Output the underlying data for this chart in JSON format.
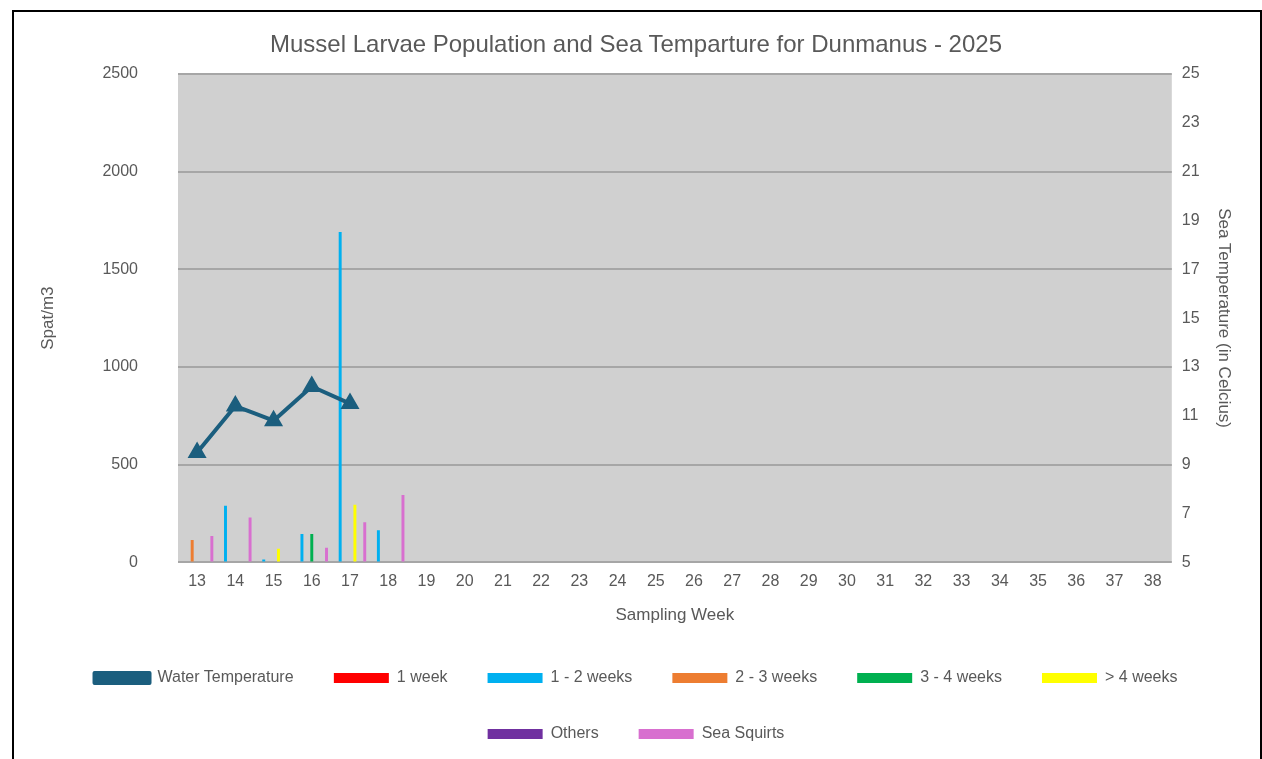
{
  "chart_data": {
    "type": "bar",
    "title": "Mussel Larvae Population and Sea Temparture for Dunmanus - 2025",
    "xlabel": "Sampling Week",
    "ylabel": "Spat/m3",
    "y2label": "Sea Temperature (in Celcius)",
    "categories": [
      "13",
      "14",
      "15",
      "16",
      "17",
      "18",
      "19",
      "20",
      "21",
      "22",
      "23",
      "24",
      "25",
      "26",
      "27",
      "28",
      "29",
      "30",
      "31",
      "32",
      "33",
      "34",
      "35",
      "36",
      "37",
      "38"
    ],
    "series": [
      {
        "name": "1 week",
        "color": "#ff0000",
        "values": [
          null,
          null,
          null,
          null,
          null,
          null,
          null,
          null,
          null,
          null,
          null,
          null,
          null,
          null,
          null,
          null,
          null,
          null,
          null,
          null,
          null,
          null,
          null,
          null,
          null,
          null
        ]
      },
      {
        "name": "1 - 2 weeks",
        "color": "#00b0f0",
        "values": [
          null,
          290,
          15,
          145,
          1690,
          165,
          null,
          null,
          null,
          null,
          null,
          null,
          null,
          null,
          null,
          null,
          null,
          null,
          null,
          null,
          null,
          null,
          null,
          null,
          null,
          null
        ]
      },
      {
        "name": "2 - 3 weeks",
        "color": "#ed7d31",
        "values": [
          115,
          null,
          null,
          null,
          null,
          null,
          null,
          null,
          null,
          null,
          null,
          null,
          null,
          null,
          null,
          null,
          null,
          null,
          null,
          null,
          null,
          null,
          null,
          null,
          null,
          null
        ]
      },
      {
        "name": "3 - 4 weeks",
        "color": "#00b050",
        "values": [
          null,
          null,
          null,
          145,
          null,
          null,
          null,
          null,
          null,
          null,
          null,
          null,
          null,
          null,
          null,
          null,
          null,
          null,
          null,
          null,
          null,
          null,
          null,
          null,
          null,
          null
        ]
      },
      {
        "name": "> 4 weeks",
        "color": "#ffff00",
        "values": [
          null,
          null,
          70,
          null,
          295,
          null,
          null,
          null,
          null,
          null,
          null,
          null,
          null,
          null,
          null,
          null,
          null,
          null,
          null,
          null,
          null,
          null,
          null,
          null,
          null,
          null
        ]
      },
      {
        "name": "Others",
        "color": "#7030a0",
        "values": [
          null,
          null,
          null,
          null,
          null,
          null,
          null,
          null,
          null,
          null,
          null,
          null,
          null,
          null,
          null,
          null,
          null,
          null,
          null,
          null,
          null,
          null,
          null,
          null,
          null,
          null
        ]
      },
      {
        "name": "Sea Squirts",
        "color": "#d86fcf",
        "values": [
          135,
          230,
          null,
          75,
          205,
          345,
          null,
          null,
          null,
          null,
          null,
          null,
          null,
          null,
          null,
          null,
          null,
          null,
          null,
          null,
          null,
          null,
          null,
          null,
          null,
          null
        ]
      },
      {
        "name": "Water Temperature",
        "type": "line",
        "axis": "y2",
        "color": "#1b5e7e",
        "marker": "triangle",
        "values": [
          9.5,
          11.4,
          10.8,
          12.2,
          11.5,
          null,
          null,
          null,
          null,
          null,
          null,
          null,
          null,
          null,
          null,
          null,
          null,
          null,
          null,
          null,
          null,
          null,
          null,
          null,
          null,
          null
        ]
      }
    ],
    "ylim": [
      0,
      2500
    ],
    "yticks": [
      0,
      500,
      1000,
      1500,
      2000,
      2500
    ],
    "y2lim": [
      5,
      25
    ],
    "y2ticks": [
      5,
      7,
      9,
      11,
      13,
      15,
      17,
      19,
      21,
      23,
      25
    ],
    "grid": "y",
    "legend": "bottom"
  }
}
